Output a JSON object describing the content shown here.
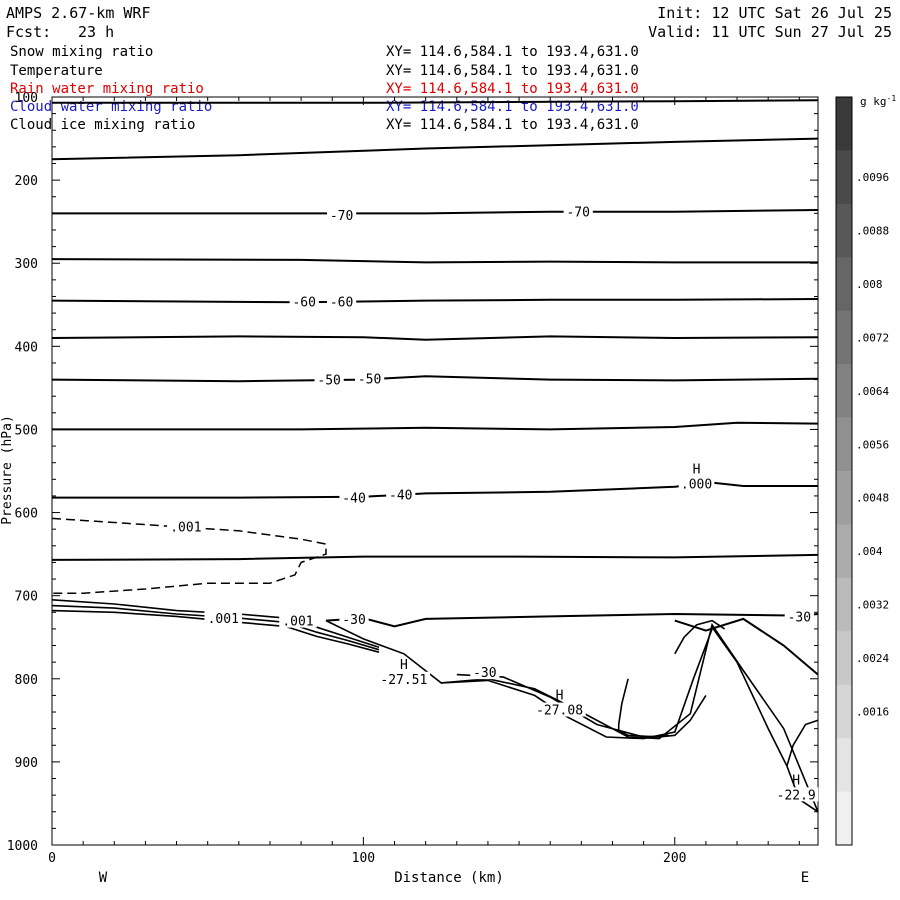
{
  "header": {
    "model": "AMPS 2.67-km WRF",
    "fcst_label": "Fcst:",
    "fcst_value": "23 h",
    "init": "Init: 12 UTC Sat 26 Jul 25",
    "valid": "Valid: 11 UTC Sun 27 Jul 25"
  },
  "fields": [
    {
      "name": "Snow mixing ratio",
      "range": "XY= 114.6,584.1 to 193.4,631.0",
      "color": "#000000"
    },
    {
      "name": "Temperature",
      "range": "XY= 114.6,584.1 to 193.4,631.0",
      "color": "#000000"
    },
    {
      "name": "Rain water mixing ratio",
      "range": "XY= 114.6,584.1 to 193.4,631.0",
      "color": "#e00000"
    },
    {
      "name": "Cloud water mixing ratio",
      "range": "XY= 114.6,584.1 to 193.4,631.0",
      "color": "#1a1acc"
    },
    {
      "name": "Cloud ice mixing ratio",
      "range": "XY= 114.6,584.1 to 193.4,631.0",
      "color": "#000000"
    }
  ],
  "chart_data": {
    "type": "contour",
    "xlabel": "Distance (km)",
    "ylabel": "Pressure (hPa)",
    "xlim": [
      0,
      246
    ],
    "ylim": [
      1000,
      100
    ],
    "x_ticks": [
      0,
      100,
      200
    ],
    "y_ticks": [
      100,
      200,
      300,
      400,
      500,
      600,
      700,
      800,
      900,
      1000
    ],
    "x_end_labels": {
      "left": "W",
      "right": "E"
    },
    "temperature_isotherms": [
      {
        "points": [
          [
            0,
            107
          ],
          [
            100,
            107
          ],
          [
            200,
            105
          ],
          [
            246,
            104
          ]
        ]
      },
      {
        "points": [
          [
            0,
            175
          ],
          [
            60,
            170
          ],
          [
            120,
            162
          ],
          [
            200,
            154
          ],
          [
            246,
            150
          ]
        ]
      },
      {
        "points": [
          [
            0,
            240
          ],
          [
            60,
            240
          ],
          [
            120,
            240
          ],
          [
            160,
            238
          ],
          [
            200,
            238
          ],
          [
            246,
            236
          ]
        ]
      },
      {
        "points": [
          [
            0,
            295
          ],
          [
            80,
            296
          ],
          [
            120,
            299
          ],
          [
            160,
            298
          ],
          [
            200,
            299
          ],
          [
            246,
            299
          ]
        ]
      },
      {
        "points": [
          [
            0,
            345
          ],
          [
            80,
            347
          ],
          [
            120,
            345
          ],
          [
            160,
            344
          ],
          [
            200,
            344
          ],
          [
            246,
            343
          ]
        ]
      },
      {
        "points": [
          [
            0,
            390
          ],
          [
            60,
            388
          ],
          [
            100,
            389
          ],
          [
            120,
            392
          ],
          [
            160,
            388
          ],
          [
            200,
            390
          ],
          [
            246,
            389
          ]
        ]
      },
      {
        "points": [
          [
            0,
            440
          ],
          [
            60,
            442
          ],
          [
            100,
            440
          ],
          [
            120,
            436
          ],
          [
            160,
            440
          ],
          [
            200,
            441
          ],
          [
            246,
            439
          ]
        ]
      },
      {
        "points": [
          [
            0,
            500
          ],
          [
            80,
            500
          ],
          [
            120,
            498
          ],
          [
            160,
            500
          ],
          [
            200,
            497
          ],
          [
            220,
            492
          ],
          [
            246,
            493
          ]
        ]
      },
      {
        "points": [
          [
            0,
            582
          ],
          [
            60,
            582
          ],
          [
            100,
            581
          ],
          [
            120,
            577
          ],
          [
            160,
            575
          ],
          [
            200,
            569
          ],
          [
            212,
            564
          ],
          [
            222,
            568
          ],
          [
            246,
            568
          ]
        ]
      },
      {
        "points": [
          [
            0,
            657
          ],
          [
            60,
            656
          ],
          [
            100,
            653
          ],
          [
            150,
            653
          ],
          [
            200,
            654
          ],
          [
            246,
            651
          ]
        ]
      },
      {
        "points": [
          [
            88,
            730
          ],
          [
            100,
            727
          ],
          [
            110,
            737
          ],
          [
            120,
            728
          ],
          [
            160,
            725
          ],
          [
            200,
            722
          ],
          [
            240,
            724
          ],
          [
            246,
            722
          ]
        ]
      },
      {
        "points": [
          [
            200,
            730
          ],
          [
            210,
            742
          ],
          [
            222,
            728
          ],
          [
            235,
            760
          ],
          [
            246,
            795
          ]
        ]
      }
    ],
    "temperature_labels": [
      {
        "text": "-70",
        "x": 93,
        "y": 242
      },
      {
        "text": "-70",
        "x": 169,
        "y": 238
      },
      {
        "text": "-60",
        "x": 81,
        "y": 346
      },
      {
        "text": "-60",
        "x": 93,
        "y": 346
      },
      {
        "text": "-50",
        "x": 89,
        "y": 440
      },
      {
        "text": "-50",
        "x": 102,
        "y": 439
      },
      {
        "text": "-40",
        "x": 97,
        "y": 582
      },
      {
        "text": "-40",
        "x": 112,
        "y": 578
      },
      {
        "text": "-30",
        "x": 97,
        "y": 728
      },
      {
        "text": "-30",
        "x": 139,
        "y": 792
      },
      {
        "text": "-30",
        "x": 240,
        "y": 725
      }
    ],
    "snow_mixing_ratio_contours": [
      {
        "level": 0.001,
        "style": "dashed",
        "points": [
          [
            0,
            607
          ],
          [
            20,
            612
          ],
          [
            40,
            617
          ],
          [
            60,
            622
          ],
          [
            80,
            632
          ],
          [
            88,
            638
          ],
          [
            88,
            650
          ],
          [
            80,
            660
          ],
          [
            78,
            675
          ],
          [
            70,
            685
          ],
          [
            50,
            685
          ],
          [
            30,
            692
          ],
          [
            10,
            697
          ],
          [
            0,
            697
          ]
        ]
      }
    ],
    "snow_labels": [
      {
        "text": ".001",
        "x": 43,
        "y": 617
      },
      {
        "text": ".001",
        "x": 55,
        "y": 727
      },
      {
        "text": ".001",
        "x": 79,
        "y": 730
      }
    ],
    "terrain_lines": [
      {
        "points": [
          [
            0,
            705
          ],
          [
            20,
            710
          ],
          [
            40,
            718
          ],
          [
            60,
            722
          ],
          [
            75,
            727
          ],
          [
            85,
            738
          ],
          [
            95,
            750
          ],
          [
            105,
            762
          ]
        ]
      },
      {
        "points": [
          [
            0,
            712
          ],
          [
            20,
            715
          ],
          [
            40,
            722
          ],
          [
            60,
            727
          ],
          [
            75,
            732
          ],
          [
            85,
            744
          ],
          [
            95,
            754
          ],
          [
            105,
            765
          ]
        ]
      },
      {
        "points": [
          [
            0,
            718
          ],
          [
            20,
            720
          ],
          [
            40,
            725
          ],
          [
            60,
            732
          ],
          [
            75,
            737
          ],
          [
            85,
            749
          ],
          [
            95,
            758
          ],
          [
            105,
            768
          ]
        ]
      },
      {
        "points": [
          [
            88,
            730
          ],
          [
            100,
            752
          ],
          [
            113,
            770
          ],
          [
            125,
            805
          ],
          [
            140,
            800
          ],
          [
            155,
            812
          ],
          [
            170,
            840
          ],
          [
            185,
            870
          ],
          [
            195,
            872
          ],
          [
            205,
            842
          ],
          [
            212,
            735
          ],
          [
            222,
            790
          ],
          [
            235,
            860
          ],
          [
            246,
            960
          ]
        ]
      },
      {
        "points": [
          [
            125,
            805
          ],
          [
            140,
            802
          ],
          [
            155,
            820
          ],
          [
            165,
            845
          ],
          [
            178,
            870
          ],
          [
            190,
            872
          ],
          [
            200,
            864
          ],
          [
            206,
            800
          ],
          [
            212,
            740
          ]
        ]
      },
      {
        "points": [
          [
            130,
            795
          ],
          [
            145,
            798
          ],
          [
            160,
            822
          ],
          [
            175,
            855
          ],
          [
            190,
            870
          ],
          [
            198,
            868
          ]
        ]
      },
      {
        "points": [
          [
            212,
            738
          ],
          [
            220,
            780
          ],
          [
            230,
            860
          ],
          [
            236,
            905
          ],
          [
            240,
            945
          ],
          [
            246,
            960
          ]
        ]
      },
      {
        "points": [
          [
            246,
            850
          ],
          [
            242,
            855
          ],
          [
            238,
            880
          ],
          [
            236,
            905
          ]
        ]
      },
      {
        "points": [
          [
            185,
            800
          ],
          [
            183,
            830
          ],
          [
            182,
            855
          ],
          [
            182,
            862
          ],
          [
            185,
            868
          ],
          [
            195,
            870
          ],
          [
            200,
            868
          ],
          [
            205,
            850
          ],
          [
            210,
            820
          ]
        ]
      },
      {
        "points": [
          [
            200,
            770
          ],
          [
            203,
            750
          ],
          [
            207,
            735
          ],
          [
            212,
            730
          ],
          [
            216,
            740
          ]
        ]
      }
    ],
    "highs": [
      {
        "marker": "H",
        "value": ".000",
        "x": 207,
        "y": 553
      },
      {
        "marker": "H",
        "value": "-27.51",
        "x": 113,
        "y": 788
      },
      {
        "marker": "H",
        "value": "-27.08",
        "x": 163,
        "y": 825
      },
      {
        "marker": "H",
        "value": "-22.9",
        "x": 239,
        "y": 927
      }
    ],
    "colorbar": {
      "unit": "g kg",
      "unit_exp": "-1",
      "tick_labels": [
        ".0096",
        ".0088",
        ".008",
        ".0072",
        ".0064",
        ".0056",
        ".0048",
        ".004",
        ".0032",
        ".0024",
        ".0016"
      ],
      "colors": [
        "#3a3a3a",
        "#4a4a4a",
        "#585858",
        "#666666",
        "#747474",
        "#828282",
        "#909090",
        "#9e9e9e",
        "#acacac",
        "#bababa",
        "#c8c8c8",
        "#d6d6d6",
        "#e4e4e4",
        "#f0f0f0"
      ]
    }
  }
}
